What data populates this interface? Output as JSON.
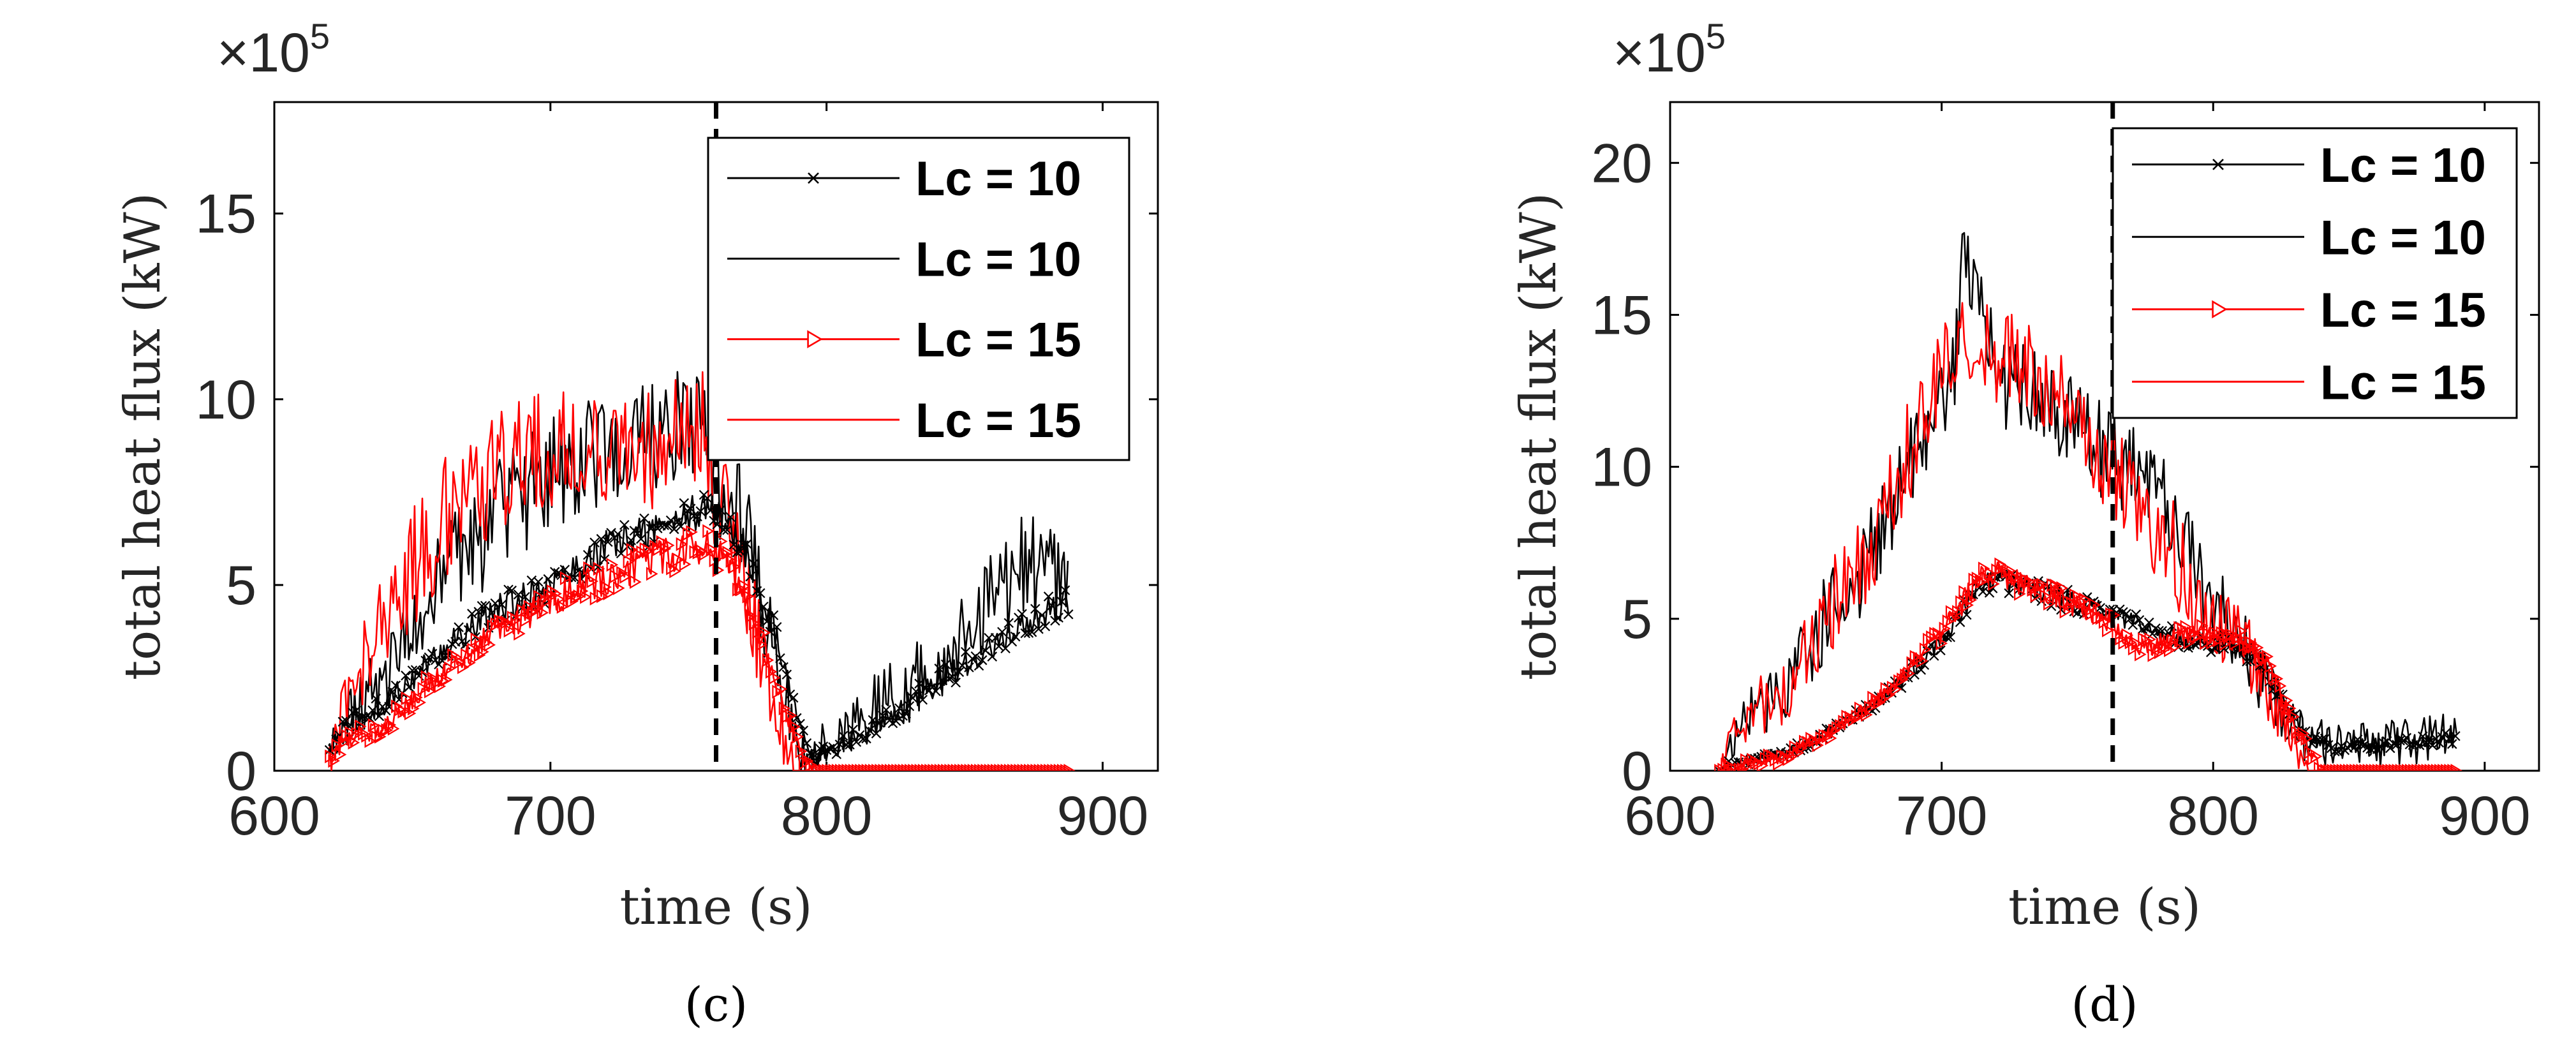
{
  "chart_data": [
    {
      "type": "line",
      "panel_label": "(c)",
      "xlabel": "time (s)",
      "ylabel": "total heat flux (kW)",
      "y_multiplier": "×10",
      "y_multiplier_exponent": "5",
      "xlim": [
        600,
        920
      ],
      "ylim": [
        0,
        18
      ],
      "xticks": [
        600,
        700,
        800,
        900
      ],
      "yticks": [
        0,
        5,
        10,
        15
      ],
      "xtick_labels": [
        "600",
        "700",
        "800",
        "900"
      ],
      "ytick_labels": [
        "0",
        "5",
        "10",
        "15"
      ],
      "vline_x": 760,
      "legend": {
        "position": "top-right",
        "entries": [
          "Lc = 10",
          "Lc = 10",
          "Lc = 15",
          "Lc = 15"
        ]
      },
      "series": [
        {
          "name": "Lc = 10",
          "color": "#000000",
          "marker": "x",
          "noise": 0.5,
          "points": [
            [
              620,
              0.5
            ],
            [
              625,
              1.2
            ],
            [
              640,
              1.8
            ],
            [
              660,
              3.2
            ],
            [
              680,
              4.3
            ],
            [
              700,
              5.0
            ],
            [
              720,
              6.0
            ],
            [
              740,
              6.6
            ],
            [
              750,
              6.9
            ],
            [
              760,
              7.0
            ],
            [
              770,
              6.0
            ],
            [
              780,
              4.0
            ],
            [
              790,
              1.5
            ],
            [
              795,
              0.3
            ],
            [
              800,
              0.5
            ],
            [
              820,
              1.3
            ],
            [
              840,
              2.4
            ],
            [
              860,
              3.3
            ],
            [
              880,
              4.3
            ],
            [
              888,
              4.5
            ]
          ]
        },
        {
          "name": "Lc = 10",
          "color": "#000000",
          "marker": "none",
          "noise": 1.6,
          "points": [
            [
              620,
              0.5
            ],
            [
              625,
              1.5
            ],
            [
              640,
              2.6
            ],
            [
              660,
              5.0
            ],
            [
              680,
              6.8
            ],
            [
              700,
              8.0
            ],
            [
              720,
              8.6
            ],
            [
              740,
              8.9
            ],
            [
              755,
              9.5
            ],
            [
              760,
              7.8
            ],
            [
              770,
              6.5
            ],
            [
              780,
              3.5
            ],
            [
              792,
              0.3
            ],
            [
              800,
              0.8
            ],
            [
              820,
              1.8
            ],
            [
              840,
              2.8
            ],
            [
              860,
              4.6
            ],
            [
              870,
              5.6
            ],
            [
              880,
              5.5
            ],
            [
              888,
              4.6
            ]
          ]
        },
        {
          "name": "Lc = 15",
          "color": "#ff0000",
          "marker": "triangle-right",
          "noise": 0.5,
          "points": [
            [
              620,
              0.3
            ],
            [
              625,
              0.8
            ],
            [
              640,
              1.2
            ],
            [
              660,
              2.6
            ],
            [
              680,
              3.7
            ],
            [
              700,
              4.6
            ],
            [
              720,
              5.2
            ],
            [
              740,
              5.8
            ],
            [
              755,
              6.0
            ],
            [
              760,
              5.9
            ],
            [
              770,
              4.8
            ],
            [
              780,
              2.8
            ],
            [
              790,
              0.5
            ],
            [
              795,
              0
            ],
            [
              888,
              0
            ]
          ]
        },
        {
          "name": "Lc = 15",
          "color": "#ff0000",
          "marker": "none",
          "noise": 1.7,
          "points": [
            [
              620,
              0.3
            ],
            [
              625,
              1.7
            ],
            [
              640,
              4.2
            ],
            [
              660,
              6.7
            ],
            [
              680,
              8.0
            ],
            [
              700,
              8.6
            ],
            [
              720,
              8.7
            ],
            [
              740,
              8.6
            ],
            [
              755,
              9.3
            ],
            [
              760,
              7.5
            ],
            [
              770,
              5.2
            ],
            [
              780,
              2.2
            ],
            [
              788,
              0
            ],
            [
              888,
              0
            ]
          ]
        }
      ]
    },
    {
      "type": "line",
      "panel_label": "(d)",
      "xlabel": "time (s)",
      "ylabel": "total heat flux (kW)",
      "y_multiplier": "×10",
      "y_multiplier_exponent": "5",
      "xlim": [
        600,
        920
      ],
      "ylim": [
        0,
        22
      ],
      "xticks": [
        600,
        700,
        800,
        900
      ],
      "yticks": [
        0,
        5,
        10,
        15,
        20
      ],
      "xtick_labels": [
        "600",
        "700",
        "800",
        "900"
      ],
      "ytick_labels": [
        "0",
        "5",
        "10",
        "15",
        "20"
      ],
      "vline_x": 763,
      "legend": {
        "position": "top-right",
        "entries": [
          "Lc = 10",
          "Lc = 10",
          "Lc = 15",
          "Lc = 15"
        ]
      },
      "series": [
        {
          "name": "Lc = 10",
          "color": "#000000",
          "marker": "x",
          "noise": 0.4,
          "points": [
            [
              618,
              0
            ],
            [
              625,
              0.3
            ],
            [
              640,
              0.5
            ],
            [
              660,
              1.3
            ],
            [
              680,
              2.5
            ],
            [
              700,
              4.3
            ],
            [
              715,
              6.2
            ],
            [
              720,
              6.3
            ],
            [
              740,
              5.8
            ],
            [
              760,
              5.2
            ],
            [
              780,
              4.5
            ],
            [
              800,
              4.2
            ],
            [
              815,
              3.8
            ],
            [
              825,
              2.5
            ],
            [
              835,
              1.0
            ],
            [
              845,
              0.8
            ],
            [
              860,
              0.9
            ],
            [
              880,
              1.0
            ],
            [
              890,
              1.1
            ]
          ]
        },
        {
          "name": "Lc = 10",
          "color": "#000000",
          "marker": "none",
          "noise": 1.6,
          "points": [
            [
              618,
              0
            ],
            [
              625,
              1.2
            ],
            [
              632,
              2.2
            ],
            [
              640,
              2.3
            ],
            [
              660,
              5.5
            ],
            [
              670,
              6.2
            ],
            [
              690,
              10.5
            ],
            [
              705,
              13.5
            ],
            [
              708,
              17.0
            ],
            [
              720,
              13.0
            ],
            [
              740,
              12.0
            ],
            [
              760,
              10.5
            ],
            [
              780,
              9.0
            ],
            [
              800,
              5.5
            ],
            [
              815,
              3.5
            ],
            [
              825,
              2.0
            ],
            [
              835,
              1.0
            ],
            [
              845,
              0.8
            ],
            [
              860,
              0.9
            ],
            [
              880,
              1.0
            ],
            [
              890,
              1.1
            ]
          ]
        },
        {
          "name": "Lc = 15",
          "color": "#ff0000",
          "marker": "triangle-right",
          "noise": 0.4,
          "points": [
            [
              618,
              0
            ],
            [
              625,
              0.2
            ],
            [
              640,
              0.4
            ],
            [
              660,
              1.3
            ],
            [
              680,
              2.6
            ],
            [
              700,
              4.5
            ],
            [
              715,
              6.5
            ],
            [
              720,
              6.5
            ],
            [
              740,
              5.8
            ],
            [
              760,
              5.0
            ],
            [
              775,
              4.0
            ],
            [
              790,
              4.5
            ],
            [
              810,
              4.3
            ],
            [
              820,
              3.5
            ],
            [
              830,
              1.5
            ],
            [
              840,
              0
            ],
            [
              890,
              0
            ]
          ]
        },
        {
          "name": "Lc = 15",
          "color": "#ff0000",
          "marker": "none",
          "noise": 1.7,
          "points": [
            [
              618,
              0
            ],
            [
              625,
              1.2
            ],
            [
              632,
              2.2
            ],
            [
              640,
              2.3
            ],
            [
              660,
              5.5
            ],
            [
              670,
              6.5
            ],
            [
              690,
              11.0
            ],
            [
              700,
              13.5
            ],
            [
              715,
              14.0
            ],
            [
              740,
              12.5
            ],
            [
              760,
              10.0
            ],
            [
              780,
              8.0
            ],
            [
              800,
              5.0
            ],
            [
              815,
              3.5
            ],
            [
              825,
              2.0
            ],
            [
              835,
              0
            ],
            [
              890,
              0
            ]
          ]
        }
      ]
    }
  ]
}
